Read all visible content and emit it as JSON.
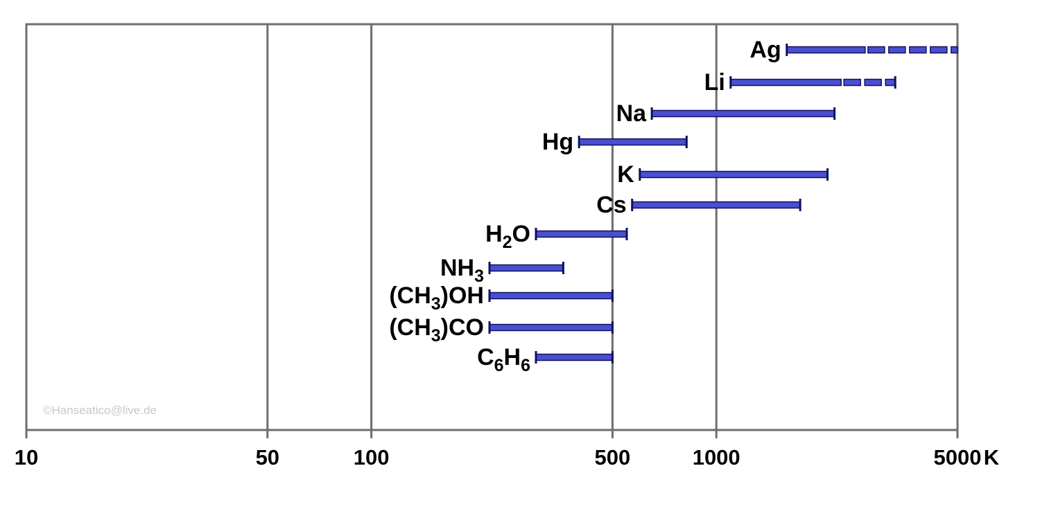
{
  "colors": {
    "bar_fill": "#4a4fd0",
    "bar_stroke": "#101060",
    "grid": "#6e6e6e",
    "frame": "#6e6e6e",
    "watermark": "#c8c8c8"
  },
  "watermark": "©Hanseatico@live.de",
  "chart_data": {
    "type": "bar",
    "orientation": "horizontal",
    "x_scale": "log",
    "xlim": [
      10,
      5000
    ],
    "x_unit": "K",
    "x_ticks": [
      10,
      50,
      100,
      500,
      1000,
      5000
    ],
    "x_tick_labels": [
      "10",
      "50",
      "100",
      "500",
      "1000",
      "5000"
    ],
    "grid": true,
    "gridlines_at": [
      50,
      100,
      500,
      1000
    ],
    "rows": [
      {
        "label": "Ag",
        "start": 1600,
        "end": 5000,
        "solid_end": 2700,
        "dashed": true
      },
      {
        "label": "Li",
        "start": 1100,
        "end": 3300,
        "solid_end": 2300,
        "dashed": true
      },
      {
        "label": "Na",
        "start": 650,
        "end": 2200
      },
      {
        "label": "Hg",
        "start": 400,
        "end": 820
      },
      {
        "label": "K",
        "start": 600,
        "end": 2100
      },
      {
        "label": "Cs",
        "start": 570,
        "end": 1750
      },
      {
        "label": "H",
        "sub": "2",
        "label_end": "O",
        "start": 300,
        "end": 550
      },
      {
        "label": "NH",
        "sub": "3",
        "label_end": "",
        "start": 220,
        "end": 360
      },
      {
        "label": "(CH",
        "sub": "3",
        "label_end": ")OH",
        "start": 220,
        "end": 500
      },
      {
        "label": "(CH",
        "sub": "3",
        "label_end": ")CO",
        "start": 220,
        "end": 500
      },
      {
        "label": "C",
        "sub": "6",
        "label_end": "H",
        "sub2": "6",
        "start": 300,
        "end": 500
      }
    ]
  }
}
